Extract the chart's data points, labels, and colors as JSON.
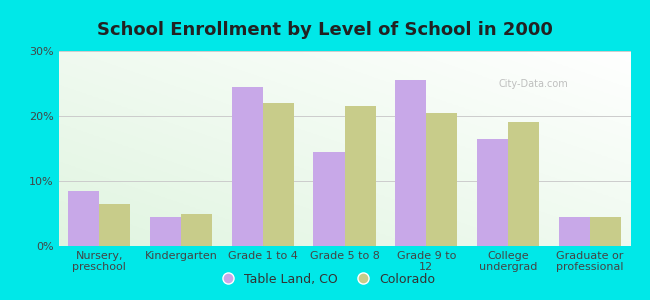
{
  "title": "School Enrollment by Level of School in 2000",
  "categories": [
    "Nursery,\npreschool",
    "Kindergarten",
    "Grade 1 to 4",
    "Grade 5 to 8",
    "Grade 9 to\n12",
    "College\nundergrad",
    "Graduate or\nprofessional"
  ],
  "table_land": [
    8.5,
    4.5,
    24.5,
    14.5,
    25.5,
    16.5,
    4.5
  ],
  "colorado": [
    6.5,
    5.0,
    22.0,
    21.5,
    20.5,
    19.0,
    4.5
  ],
  "color_table_land": "#c8a8e8",
  "color_colorado": "#c8cc8a",
  "background_color": "#00e8e8",
  "ylim": [
    0,
    30
  ],
  "yticks": [
    0,
    10,
    20,
    30
  ],
  "ytick_labels": [
    "0%",
    "10%",
    "20%",
    "30%"
  ],
  "legend_label_1": "Table Land, CO",
  "legend_label_2": "Colorado",
  "bar_width": 0.38,
  "title_fontsize": 13,
  "tick_fontsize": 8,
  "legend_fontsize": 9,
  "watermark": "City-Data.com"
}
